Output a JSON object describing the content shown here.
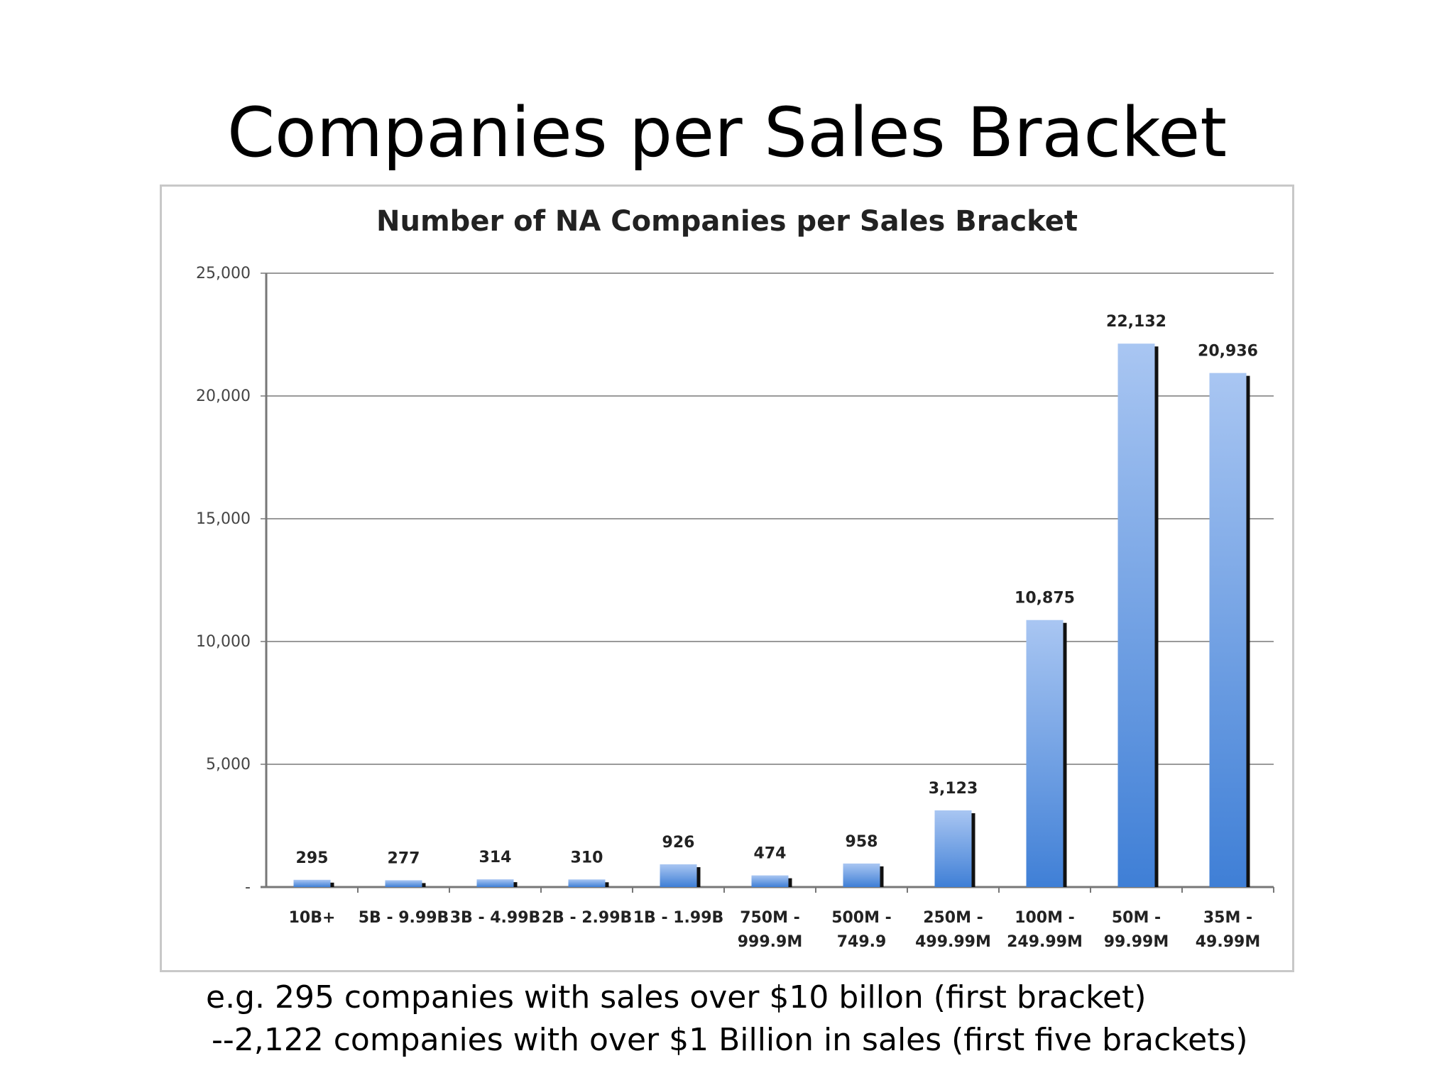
{
  "slide": {
    "title": "Companies per Sales Bracket",
    "caption_line_1": "e.g. 295 companies with sales over $10 billon (first bracket)",
    "caption_line_2": "--2,122 companies with over $1 Billion in sales (first five brackets)"
  },
  "colors": {
    "bar_top": "#a9c6f2",
    "bar_bottom": "#3f7fd6",
    "bar_shadow": "#111111",
    "gridline": "#9a9a9a",
    "axis": "#777777"
  },
  "chart_data": {
    "type": "bar",
    "title": "Number of NA Companies per Sales Bracket",
    "xlabel": "",
    "ylabel": "",
    "ylim": [
      0,
      25000
    ],
    "yticks": [
      0,
      5000,
      10000,
      15000,
      20000,
      25000
    ],
    "ytick_labels": [
      "-",
      "5,000",
      "10,000",
      "15,000",
      "20,000",
      "25,000"
    ],
    "grid": true,
    "legend": "none",
    "categories": [
      [
        "10B+"
      ],
      [
        "5B  - 9.99B"
      ],
      [
        "3B - 4.99B"
      ],
      [
        "2B - 2.99B"
      ],
      [
        "1B - 1.99B"
      ],
      [
        "750M -",
        "999.9M"
      ],
      [
        "500M -",
        "749.9"
      ],
      [
        "250M -",
        "499.99M"
      ],
      [
        "100M -",
        "249.99M"
      ],
      [
        "50M -",
        "99.99M"
      ],
      [
        "35M -",
        "49.99M"
      ]
    ],
    "values": [
      295,
      277,
      314,
      310,
      926,
      474,
      958,
      3123,
      10875,
      22132,
      20936
    ],
    "data_labels": [
      "295",
      "277",
      "314",
      "310",
      "926",
      "474",
      "958",
      "3,123",
      "10,875",
      "22,132",
      "20,936"
    ]
  }
}
